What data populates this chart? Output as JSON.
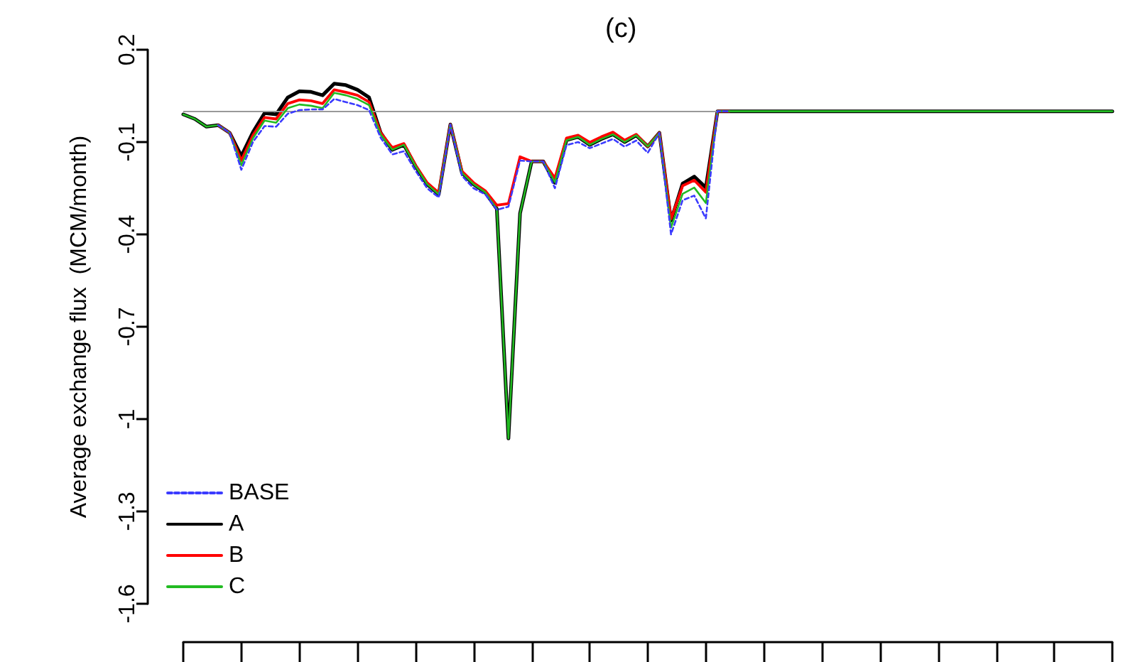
{
  "chart_data": {
    "type": "line",
    "title": "(c)",
    "ylabel": "Average exchange flux  (MCM/month)",
    "categories": [
      null,
      null,
      null,
      null,
      null,
      null,
      null,
      null,
      null,
      null,
      null,
      null,
      null,
      null,
      null,
      null,
      null,
      null,
      null,
      null,
      null,
      null,
      null,
      null,
      null,
      null,
      null,
      null,
      null,
      null,
      null,
      null,
      null,
      null,
      null,
      null,
      null,
      null,
      null,
      null,
      null,
      null,
      null,
      null,
      null,
      null,
      null,
      null,
      null,
      null,
      null,
      null,
      null,
      null,
      null,
      null,
      null,
      null,
      null,
      null,
      null,
      null,
      null,
      null,
      null,
      null,
      null,
      null,
      null,
      null,
      null,
      null,
      null,
      null,
      null,
      null,
      null,
      null,
      null,
      null,
      null
    ],
    "series": [
      {
        "name": "BASE",
        "color": "#3b3bff",
        "line_style": "dashed",
        "values": [
          null,
          null,
          null,
          -0.045,
          -0.07,
          -0.19,
          -0.1,
          -0.048,
          -0.05,
          -0.008,
          0.004,
          0.006,
          0.006,
          0.04,
          0.03,
          0.02,
          0.004,
          -0.086,
          -0.14,
          -0.13,
          -0.193,
          -0.25,
          -0.28,
          -0.043,
          -0.21,
          -0.25,
          -0.27,
          -0.32,
          -0.31,
          -0.16,
          -0.163,
          -0.163,
          -0.25,
          -0.11,
          -0.1,
          -0.12,
          -0.105,
          -0.09,
          -0.115,
          -0.095,
          -0.135,
          -0.07,
          -0.4,
          -0.289,
          -0.274,
          -0.348,
          0,
          0,
          null,
          null,
          null,
          null,
          null,
          null,
          null,
          null,
          null,
          null,
          null,
          null,
          null,
          null,
          null,
          null,
          null,
          null,
          null,
          null,
          null,
          null,
          null,
          null,
          null,
          null,
          null,
          null,
          null,
          null,
          null,
          null,
          null
        ]
      },
      {
        "name": "A",
        "color": "#000000",
        "line_style": "solid",
        "values": [
          -0.01,
          -0.025,
          -0.05,
          -0.045,
          -0.07,
          -0.145,
          -0.068,
          -0.006,
          -0.01,
          0.045,
          0.065,
          0.063,
          0.052,
          0.09,
          0.085,
          0.07,
          0.045,
          -0.07,
          -0.125,
          -0.109,
          -0.178,
          -0.237,
          -0.27,
          -0.043,
          -0.2,
          -0.237,
          -0.263,
          -0.317,
          -1.063,
          -0.332,
          -0.163,
          -0.163,
          -0.232,
          -0.094,
          -0.083,
          -0.109,
          -0.09,
          -0.075,
          -0.1,
          -0.078,
          -0.114,
          -0.07,
          -0.355,
          -0.235,
          -0.212,
          -0.248,
          0,
          0,
          0,
          0,
          0,
          0,
          0,
          0,
          0,
          0,
          0,
          0,
          0,
          0,
          0,
          0,
          0,
          0,
          0,
          0,
          0,
          0,
          0,
          0,
          0,
          0,
          0,
          0,
          0,
          0,
          0,
          0,
          0,
          0,
          0
        ]
      },
      {
        "name": "B",
        "color": "#ff0000",
        "line_style": "solid",
        "values": [
          null,
          null,
          null,
          -0.045,
          -0.07,
          -0.16,
          -0.078,
          -0.02,
          -0.025,
          0.025,
          0.037,
          0.034,
          0.025,
          0.07,
          0.062,
          0.052,
          0.03,
          -0.07,
          -0.118,
          -0.105,
          -0.175,
          -0.232,
          -0.265,
          -0.043,
          -0.195,
          -0.232,
          -0.258,
          -0.305,
          -0.3,
          -0.148,
          -0.163,
          -0.163,
          -0.217,
          -0.087,
          -0.078,
          -0.101,
          -0.083,
          -0.068,
          -0.094,
          -0.075,
          -0.114,
          -0.07,
          -0.35,
          -0.242,
          -0.224,
          -0.263,
          0,
          0,
          null,
          null,
          null,
          null,
          null,
          null,
          null,
          null,
          null,
          null,
          null,
          null,
          null,
          null,
          null,
          null,
          null,
          null,
          null,
          null,
          null,
          null,
          null,
          null,
          null,
          null,
          null,
          null,
          null,
          null,
          null,
          null,
          null
        ]
      },
      {
        "name": "C",
        "color": "#22bb22",
        "line_style": "solid",
        "values": [
          -0.01,
          -0.025,
          -0.05,
          -0.045,
          -0.07,
          -0.175,
          -0.088,
          -0.03,
          -0.037,
          0.01,
          0.022,
          0.018,
          0.01,
          0.06,
          0.052,
          0.04,
          0.02,
          -0.075,
          -0.125,
          -0.109,
          -0.178,
          -0.237,
          -0.27,
          -0.043,
          -0.2,
          -0.237,
          -0.263,
          -0.317,
          -1.063,
          -0.332,
          -0.163,
          -0.163,
          -0.23,
          -0.094,
          -0.083,
          -0.109,
          -0.09,
          -0.075,
          -0.1,
          -0.078,
          -0.114,
          -0.07,
          -0.378,
          -0.268,
          -0.248,
          -0.298,
          0,
          0,
          0,
          0,
          0,
          0,
          0,
          0,
          0,
          0,
          0,
          0,
          0,
          0,
          0,
          0,
          0,
          0,
          0,
          0,
          0,
          0,
          0,
          0,
          0,
          0,
          0,
          0,
          0,
          0,
          0,
          0,
          0,
          0,
          0
        ]
      }
    ],
    "ylim": [
      -1.6,
      0.2
    ],
    "yticks": [
      0.2,
      -0.1,
      -0.4,
      -0.7,
      -1,
      -1.3,
      -1.6
    ],
    "ref_lines": [
      {
        "axis": "y",
        "value": 0,
        "color": "#999999"
      }
    ],
    "tick_labels": "y",
    "grid": false,
    "legend": "bottom left",
    "marker": "none"
  }
}
